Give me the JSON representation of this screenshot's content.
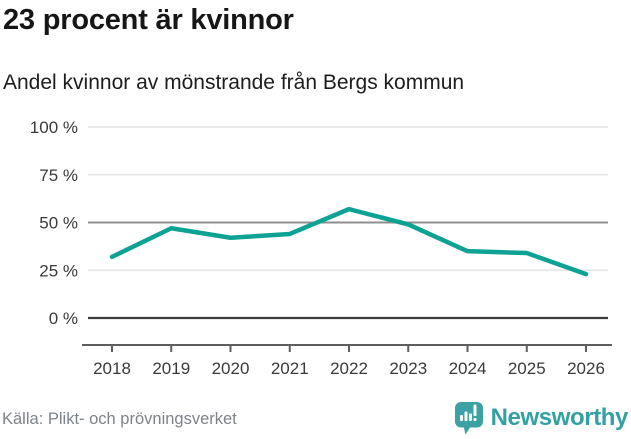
{
  "header": {
    "title": "23 procent är kvinnor",
    "subtitle": "Andel kvinnor av mönstrande från Bergs kommun"
  },
  "chart_data": {
    "type": "line",
    "title": "23 procent är kvinnor",
    "subtitle": "Andel kvinnor av mönstrande från Bergs kommun",
    "categories": [
      "2018",
      "2019",
      "2020",
      "2021",
      "2022",
      "2023",
      "2024",
      "2025",
      "2026"
    ],
    "values": [
      32,
      47,
      42,
      44,
      57,
      49,
      35,
      34,
      23
    ],
    "unit": "%",
    "xlabel": "",
    "ylabel": "",
    "ylim": [
      0,
      100
    ],
    "grid": "on",
    "legend": "none",
    "line_color": "#0EA294",
    "y_axis": {
      "ticks": [
        {
          "label": "100 %",
          "value": 100
        },
        {
          "label": "75 %",
          "value": 75
        },
        {
          "label": "50 %",
          "value": 50
        },
        {
          "label": "25 %",
          "value": 25
        },
        {
          "label": "0 %",
          "value": 0
        }
      ]
    }
  },
  "footer": {
    "source": "Källa: Plikt- och prövningsverket",
    "brand": "Newsworthy"
  },
  "colors": {
    "accent_line": "#0EA294",
    "brand_teal": "#3BA1A2",
    "grid_light": "#e7e7e7",
    "grid_mid": "#8e8e8e",
    "grid_zero": "#3f3f3f",
    "axis": "#5e5e5e",
    "tick_label": "#3a3a3a",
    "source_text": "#7e828c"
  }
}
